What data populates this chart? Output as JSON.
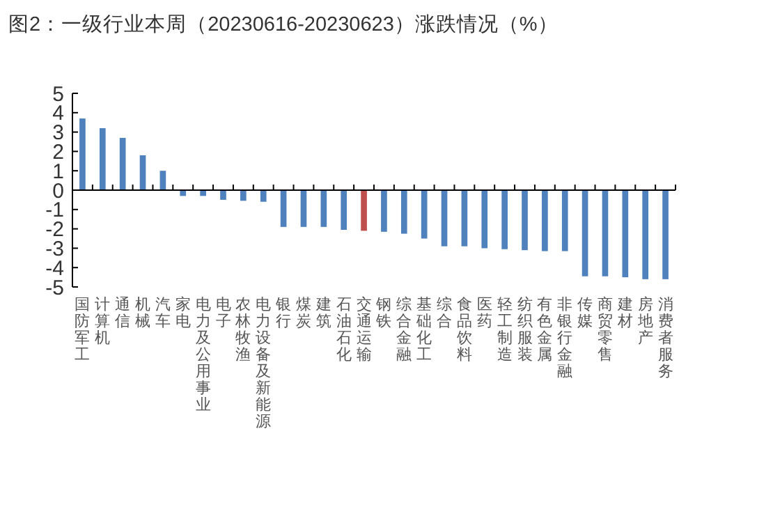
{
  "chart_data": {
    "type": "bar",
    "title": "图2：一级行业本周（20230616-20230623）涨跌情况（%）",
    "categories": [
      "国防军工",
      "计算机",
      "通信",
      "机械",
      "汽车",
      "家电",
      "电力及公用事业",
      "电子",
      "农林牧渔",
      "电力设备及新能源",
      "银行",
      "煤炭",
      "建筑",
      "石油石化",
      "交通运输",
      "钢铁",
      "综合金融",
      "基础化工",
      "综合",
      "食品饮料",
      "医药",
      "轻工制造",
      "纺织服装",
      "有色金属",
      "非银行金融",
      "传媒",
      "商贸零售",
      "建材",
      "房地产",
      "消费者服务"
    ],
    "values": [
      3.7,
      3.2,
      2.7,
      1.8,
      1.0,
      -0.3,
      -0.3,
      -0.5,
      -0.55,
      -0.6,
      -1.9,
      -1.9,
      -1.9,
      -2.05,
      -2.1,
      -2.15,
      -2.25,
      -2.5,
      -2.9,
      -2.9,
      -3.0,
      -3.05,
      -3.1,
      -3.15,
      -3.15,
      -4.45,
      -4.45,
      -4.5,
      -4.6,
      -4.6
    ],
    "colors": [
      "#4f81bd",
      "#4f81bd",
      "#4f81bd",
      "#4f81bd",
      "#4f81bd",
      "#4f81bd",
      "#4f81bd",
      "#4f81bd",
      "#4f81bd",
      "#4f81bd",
      "#4f81bd",
      "#4f81bd",
      "#4f81bd",
      "#4f81bd",
      "#c0504d",
      "#4f81bd",
      "#4f81bd",
      "#4f81bd",
      "#4f81bd",
      "#4f81bd",
      "#4f81bd",
      "#4f81bd",
      "#4f81bd",
      "#4f81bd",
      "#4f81bd",
      "#4f81bd",
      "#4f81bd",
      "#4f81bd",
      "#4f81bd",
      "#4f81bd"
    ],
    "ylim": [
      -5,
      5
    ],
    "yticks": [
      -5,
      -4,
      -3,
      -2,
      -1,
      0,
      1,
      2,
      3,
      4,
      5
    ]
  }
}
